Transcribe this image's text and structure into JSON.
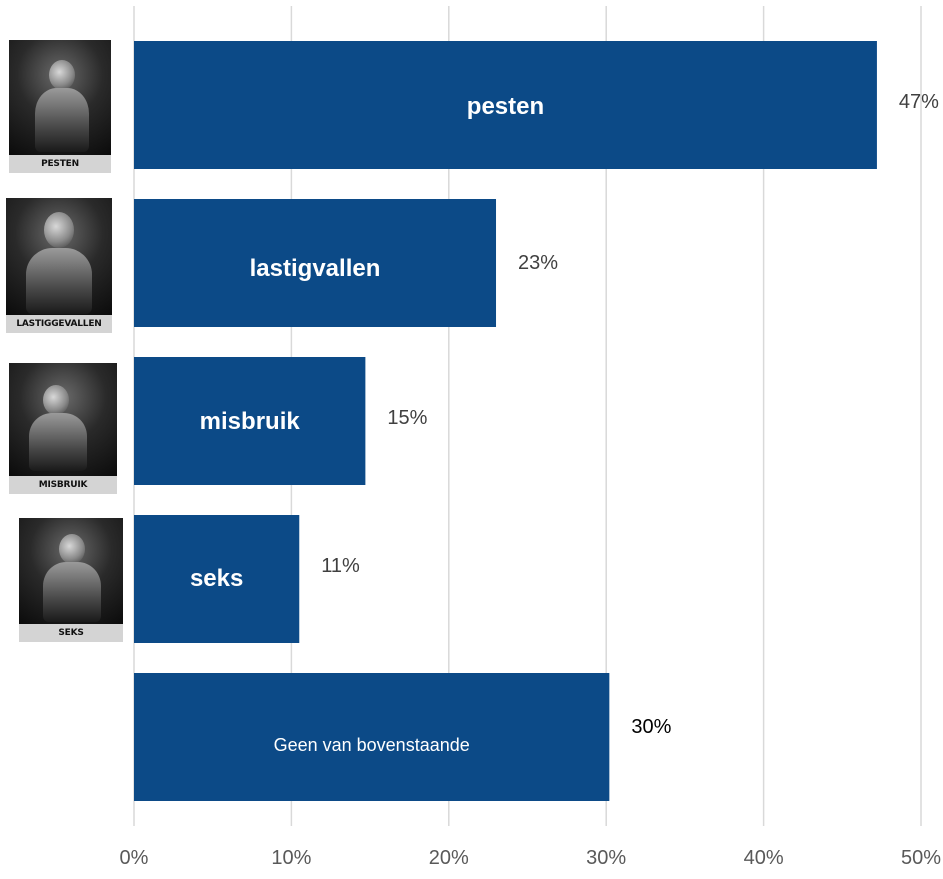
{
  "chart_data": {
    "type": "bar",
    "orientation": "horizontal",
    "categories": [
      "pesten",
      "lastigvallen",
      "misbruik",
      "seks",
      "Geen van bovenstaande"
    ],
    "values": [
      47.2,
      23.0,
      14.7,
      10.5,
      30.2
    ],
    "value_labels": [
      "47%",
      "23%",
      "15%",
      "11%",
      "30%"
    ],
    "xlim": [
      0,
      50
    ],
    "x_ticks": [
      "0%",
      "10%",
      "20%",
      "30%",
      "40%",
      "50%"
    ],
    "title": "",
    "xlabel": "",
    "ylabel": "",
    "grid": "vertical",
    "legend": "none",
    "colors": {
      "bar": "#0c4a87",
      "bar_label": "#ffffff",
      "value_label": "#404040",
      "grid": "#d9d9d9",
      "tick_label": "#595959"
    }
  },
  "thumbnails": [
    {
      "caption": "PESTEN",
      "icon": "bullied-teen-photo-icon"
    },
    {
      "caption": "LASTIGGEVALLEN",
      "icon": "harassed-teen-photo-icon"
    },
    {
      "caption": "MISBRUIK",
      "icon": "abused-teen-photo-icon"
    },
    {
      "caption": "SEKS",
      "icon": "sexting-teen-photo-icon"
    }
  ]
}
